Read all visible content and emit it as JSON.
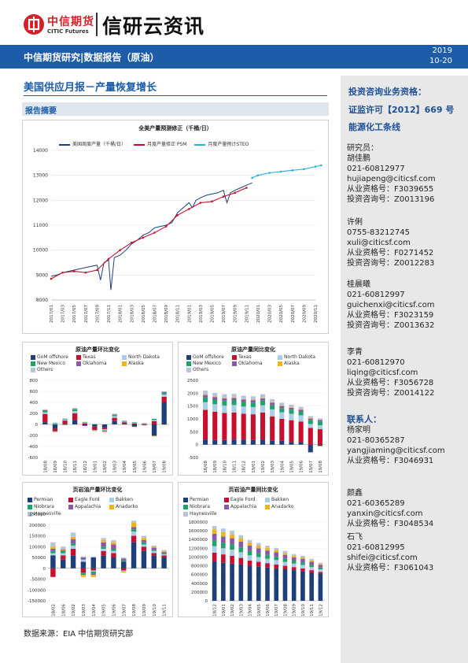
{
  "header": {
    "logo_cn": "中信期货",
    "logo_en": "CITIC Futures",
    "brand": "信研云资讯"
  },
  "band": {
    "title": "中信期货研究|数据报告（原油）",
    "year": "2019",
    "date": "10-20"
  },
  "report": {
    "title": "美国供应月报－产量恢复增长",
    "summary_label": "报告摘要"
  },
  "colors": {
    "brand_red": "#d42027",
    "brand_blue": "#1d5ca8",
    "series_navy": "#1f3f7a",
    "series_red": "#c8102e",
    "series_cyan": "#27b0d8",
    "gom": "#1f3f7a",
    "texas": "#c8102e",
    "north_dakota": "#a8cfe8",
    "new_mexico": "#1ea46b",
    "oklahoma": "#8a58a8",
    "alaska": "#f2b318",
    "others": "#b8c4d8"
  },
  "chart_data": [
    {
      "type": "line",
      "title": "全美产量预测修正（千桶/日）",
      "ylim": [
        8000,
        14000
      ],
      "yticks": [
        8000,
        9000,
        10000,
        11000,
        12000,
        13000,
        14000
      ],
      "categories": [
        "2017/01",
        "2017/03",
        "2017/05",
        "2017/07",
        "2017/09",
        "2017/11",
        "2018/01",
        "2018/03",
        "2018/05",
        "2018/07",
        "2018/09",
        "2018/11",
        "2019/01",
        "2019/03",
        "2019/05",
        "2019/07",
        "2019/09",
        "2019/11",
        "2020/01",
        "2020/03",
        "2020/05",
        "2020/07",
        "2020/09",
        "2020/11"
      ],
      "grid": true,
      "legend_position": "top",
      "series": [
        {
          "name": "美国周度产量（千桶/日）",
          "style": "line",
          "points": [
            [
              0,
              8950
            ],
            [
              0.5,
              9000
            ],
            [
              1,
              9100
            ],
            [
              1.5,
              9150
            ],
            [
              2,
              9200
            ],
            [
              2.5,
              9250
            ],
            [
              3,
              9300
            ],
            [
              3.5,
              9350
            ],
            [
              4,
              9400
            ],
            [
              4.3,
              8800
            ],
            [
              4.6,
              9500
            ],
            [
              5,
              9600
            ],
            [
              5.2,
              8400
            ],
            [
              5.5,
              9700
            ],
            [
              6,
              9800
            ],
            [
              6.5,
              10000
            ],
            [
              7,
              10250
            ],
            [
              7.5,
              10400
            ],
            [
              8,
              10600
            ],
            [
              8.5,
              10700
            ],
            [
              9,
              10900
            ],
            [
              9.5,
              10950
            ],
            [
              10,
              11000
            ],
            [
              10.5,
              11100
            ],
            [
              11,
              11500
            ],
            [
              11.5,
              11700
            ],
            [
              12,
              11900
            ],
            [
              12.3,
              11700
            ],
            [
              12.6,
              12000
            ],
            [
              13,
              12100
            ],
            [
              13.5,
              12200
            ],
            [
              14,
              12250
            ],
            [
              14.5,
              12300
            ],
            [
              15,
              12400
            ],
            [
              15.3,
              11900
            ],
            [
              15.6,
              12300
            ],
            [
              16,
              12400
            ],
            [
              16.5,
              12500
            ],
            [
              17,
              12600
            ],
            [
              17.5,
              12700
            ]
          ]
        },
        {
          "name": "月度产量修正 PSM",
          "style": "line-marker",
          "points": [
            [
              0,
              8850
            ],
            [
              1,
              9100
            ],
            [
              2,
              9150
            ],
            [
              3,
              9100
            ],
            [
              4,
              9200
            ],
            [
              5,
              9650
            ],
            [
              6,
              10000
            ],
            [
              7,
              10300
            ],
            [
              8,
              10500
            ],
            [
              9,
              10700
            ],
            [
              10,
              10950
            ],
            [
              11,
              11400
            ],
            [
              12,
              11650
            ],
            [
              13,
              11900
            ],
            [
              14,
              11950
            ],
            [
              15,
              12150
            ],
            [
              16,
              12300
            ],
            [
              17,
              12500
            ]
          ]
        },
        {
          "name": "月度产量预计STEO",
          "style": "line-marker",
          "points": [
            [
              17.5,
              12900
            ],
            [
              18,
              13000
            ],
            [
              19,
              13100
            ],
            [
              20,
              13150
            ],
            [
              21,
              13200
            ],
            [
              22,
              13250
            ],
            [
              23,
              13350
            ],
            [
              23.5,
              13400
            ]
          ]
        }
      ]
    },
    {
      "type": "bar",
      "title": "原油产量环比变化",
      "ylim": [
        -600,
        800
      ],
      "yticks": [
        -600,
        -400,
        -200,
        0,
        200,
        400,
        600,
        800
      ],
      "categories": [
        "18/08",
        "18/09",
        "18/10",
        "18/11",
        "18/12",
        "19/01",
        "19/02",
        "19/03",
        "19/04",
        "19/05",
        "19/06",
        "19/07",
        "19/08"
      ],
      "legend": [
        "GoM offshore",
        "Texas",
        "North Dakota",
        "New Mexico",
        "Oklahoma",
        "Alaska",
        "Others"
      ],
      "values": [
        [
          40,
          150,
          30,
          30,
          10,
          5,
          10
        ],
        [
          -80,
          -40,
          10,
          15,
          -10,
          -10,
          -5
        ],
        [
          10,
          60,
          20,
          10,
          -10,
          -5,
          10
        ],
        [
          80,
          120,
          40,
          30,
          10,
          10,
          10
        ],
        [
          -20,
          20,
          10,
          10,
          -10,
          5,
          5
        ],
        [
          -40,
          -60,
          -10,
          5,
          -5,
          -5,
          -5
        ],
        [
          -60,
          -30,
          -20,
          -10,
          -10,
          -10,
          5
        ],
        [
          60,
          60,
          30,
          20,
          10,
          5,
          10
        ],
        [
          20,
          20,
          10,
          10,
          5,
          -5,
          5
        ],
        [
          -40,
          20,
          10,
          10,
          -5,
          -5,
          5
        ],
        [
          -10,
          10,
          5,
          5,
          -5,
          -5,
          5
        ],
        [
          -200,
          60,
          20,
          20,
          -10,
          -10,
          5
        ],
        [
          400,
          100,
          40,
          30,
          20,
          -10,
          10
        ]
      ]
    },
    {
      "type": "bar",
      "title": "原油产量同比变化",
      "ylim": [
        -500,
        2500
      ],
      "yticks": [
        -500,
        0,
        500,
        1000,
        1500,
        2000,
        2500
      ],
      "categories": [
        "18/08",
        "18/09",
        "18/10",
        "18/11",
        "18/12",
        "19/01",
        "19/02",
        "19/03",
        "19/04",
        "19/05",
        "19/06",
        "19/07",
        "19/08"
      ],
      "legend": [
        "GoM offshore",
        "Texas",
        "North Dakota",
        "New Mexico",
        "Oklahoma",
        "Alaska",
        "Others"
      ],
      "values": [
        [
          200,
          1150,
          300,
          180,
          100,
          20,
          150
        ],
        [
          180,
          1100,
          290,
          180,
          100,
          20,
          140
        ],
        [
          180,
          1050,
          290,
          180,
          100,
          20,
          140
        ],
        [
          200,
          1050,
          290,
          180,
          90,
          20,
          140
        ],
        [
          200,
          1000,
          280,
          180,
          90,
          20,
          130
        ],
        [
          180,
          1000,
          280,
          180,
          90,
          20,
          130
        ],
        [
          200,
          1050,
          280,
          180,
          90,
          20,
          140
        ],
        [
          150,
          950,
          270,
          170,
          90,
          20,
          120
        ],
        [
          150,
          850,
          260,
          160,
          80,
          20,
          110
        ],
        [
          100,
          850,
          250,
          160,
          70,
          20,
          100
        ],
        [
          100,
          800,
          240,
          150,
          70,
          20,
          90
        ],
        [
          -300,
          650,
          150,
          150,
          60,
          20,
          80
        ],
        [
          -50,
          600,
          150,
          150,
          60,
          -20,
          60
        ]
      ]
    },
    {
      "type": "bar",
      "title": "页岩油产量环比变化",
      "ylim": [
        -150000,
        250000
      ],
      "yticks": [
        -150000,
        -100000,
        -50000,
        0,
        50000,
        100000,
        150000,
        200000,
        250000
      ],
      "categories": [
        "18/02",
        "18/06",
        "19/02",
        "19/03",
        "19/04",
        "19/05",
        "19/06",
        "19/07",
        "19/08",
        "19/09",
        "19/10",
        "19/11"
      ],
      "legend": [
        "Permian",
        "Eagle Ford",
        "Bakken",
        "Niobrara",
        "Appalachia",
        "Anadarko",
        "Haynesville"
      ],
      "values": [
        [
          60000,
          -40000,
          10000,
          10000,
          10000,
          10000,
          20000
        ],
        [
          40000,
          20000,
          10000,
          10000,
          5000,
          5000,
          10000
        ],
        [
          60000,
          30000,
          15000,
          10000,
          20000,
          10000,
          20000
        ],
        [
          30000,
          -20000,
          10000,
          -10000,
          10000,
          -10000,
          5000
        ],
        [
          50000,
          -10000,
          -5000,
          -10000,
          -5000,
          -10000,
          5000
        ],
        [
          60000,
          20000,
          10000,
          10000,
          20000,
          10000,
          10000
        ],
        [
          50000,
          20000,
          10000,
          10000,
          20000,
          10000,
          10000
        ],
        [
          30000,
          -10000,
          -5000,
          5000,
          10000,
          -5000,
          5000
        ],
        [
          120000,
          30000,
          20000,
          10000,
          10000,
          20000,
          10000
        ],
        [
          80000,
          20000,
          10000,
          10000,
          10000,
          10000,
          10000
        ],
        [
          60000,
          10000,
          10000,
          5000,
          10000,
          5000,
          5000
        ],
        [
          50000,
          10000,
          5000,
          5000,
          5000,
          5000,
          5000
        ]
      ]
    },
    {
      "type": "bar",
      "title": "页岩油产量同比变化",
      "ylim": [
        0,
        1800000
      ],
      "yticks": [
        0,
        200000,
        400000,
        600000,
        800000,
        1000000,
        1200000,
        1400000,
        1600000,
        1800000
      ],
      "categories": [
        "18/12",
        "19/01",
        "19/02",
        "19/03",
        "19/04",
        "19/05",
        "19/06",
        "19/07",
        "19/08",
        "19/09",
        "19/10",
        "19/11",
        "19/12"
      ],
      "legend": [
        "Permian",
        "Eagle Ford",
        "Bakken",
        "Niobrara",
        "Appalachia",
        "Anadarko",
        "Haynesville"
      ],
      "values": [
        [
          900000,
          200000,
          150000,
          130000,
          150000,
          100000,
          80000
        ],
        [
          870000,
          190000,
          140000,
          130000,
          140000,
          100000,
          80000
        ],
        [
          850000,
          180000,
          140000,
          120000,
          140000,
          90000,
          80000
        ],
        [
          830000,
          150000,
          130000,
          110000,
          130000,
          80000,
          70000
        ],
        [
          800000,
          120000,
          120000,
          100000,
          120000,
          70000,
          60000
        ],
        [
          780000,
          110000,
          110000,
          90000,
          110000,
          60000,
          60000
        ],
        [
          760000,
          100000,
          100000,
          90000,
          100000,
          60000,
          50000
        ],
        [
          740000,
          90000,
          100000,
          80000,
          100000,
          50000,
          50000
        ],
        [
          720000,
          80000,
          90000,
          70000,
          90000,
          40000,
          50000
        ],
        [
          700000,
          70000,
          80000,
          60000,
          80000,
          40000,
          40000
        ],
        [
          680000,
          60000,
          80000,
          60000,
          80000,
          30000,
          40000
        ],
        [
          650000,
          50000,
          70000,
          50000,
          70000,
          30000,
          40000
        ],
        [
          620000,
          40000,
          60000,
          40000,
          60000,
          20000,
          30000
        ]
      ]
    }
  ],
  "source": "数据来源：EIA 中信期货研究部",
  "sidebar": {
    "qual_1": "投资咨询业务资格：",
    "qual_2": "证监许可【2012】669 号",
    "qual_3": "能源化工条线",
    "researcher_label": "研究员：",
    "researchers": [
      {
        "name": "胡佳鹏",
        "phone": "021-60812977",
        "email": "hujiapeng@citicsf.com",
        "cert1": "从业资格号：F3039655",
        "cert2": "投资咨询号：Z0013196"
      },
      {
        "name": "许俐",
        "phone": "0755-83212745",
        "email": "xuli@citicsf.com",
        "cert1": "从业资格号：F0271452",
        "cert2": "投资咨询号：Z0012283"
      },
      {
        "name": "桂晨曦",
        "phone": "021-60812997",
        "email": "guichenxi@citicsf.com",
        "cert1": "从业资格号：F3023159",
        "cert2": "投资咨询号：Z0013632"
      },
      {
        "name": "李青",
        "phone": "021-60812970",
        "email": "liqing@citicsf.com",
        "cert1": "从业资格号：F3056728",
        "cert2": "投资咨询号：Z0014122"
      }
    ],
    "contact_label": "联系人：",
    "contacts": [
      {
        "name": "杨家明",
        "phone": "021-80365287",
        "email": "yangjiaming@citicsf.com",
        "cert1": "从业资格号：F3046931"
      },
      {
        "name": "颜鑫",
        "phone": "021-60365289",
        "email": "yanxin@citicsf.com",
        "cert1": "从业资格号：F3048534"
      },
      {
        "name": "石飞",
        "phone": "021-60812995",
        "email": "shifei@citicsf.com",
        "cert1": "从业资格号：F3061043"
      }
    ]
  }
}
